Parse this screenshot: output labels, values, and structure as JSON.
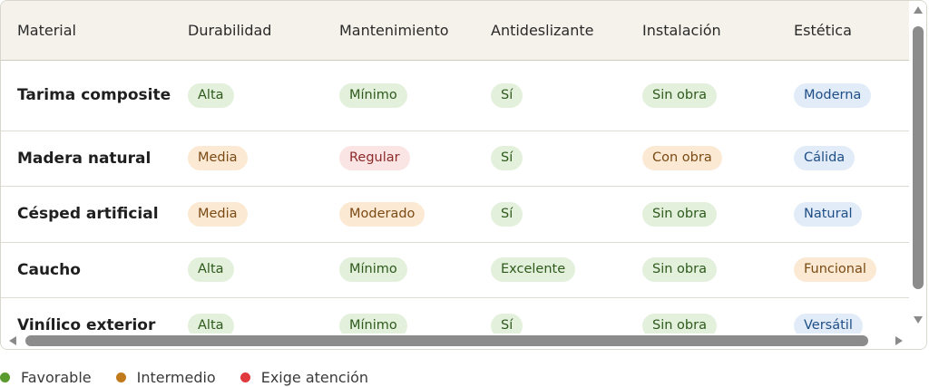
{
  "table": {
    "headers": [
      "Material",
      "Durabilidad",
      "Mantenimiento",
      "Antideslizante",
      "Instalación",
      "Estética"
    ],
    "rows": [
      {
        "material": "Tarima composite",
        "durabilidad": "Alta",
        "mantenimiento": "Mínimo",
        "antideslizante": "Sí",
        "instalacion": "Sin obra",
        "estetica": "Moderna"
      },
      {
        "material": "Madera natural",
        "durabilidad": "Media",
        "mantenimiento": "Regular",
        "antideslizante": "Sí",
        "instalacion": "Con obra",
        "estetica": "Cálida"
      },
      {
        "material": "Césped artificial",
        "durabilidad": "Media",
        "mantenimiento": "Moderado",
        "antideslizante": "Sí",
        "instalacion": "Sin obra",
        "estetica": "Natural"
      },
      {
        "material": "Caucho",
        "durabilidad": "Alta",
        "mantenimiento": "Mínimo",
        "antideslizante": "Excelente",
        "instalacion": "Sin obra",
        "estetica": "Funcional"
      },
      {
        "material": "Vinílico exterior",
        "durabilidad": "Alta",
        "mantenimiento": "Mínimo",
        "antideslizante": "Sí",
        "instalacion": "Sin obra",
        "estetica": "Versátil"
      }
    ]
  },
  "legend": [
    {
      "label": "Favorable",
      "color": "#5a9a2e"
    },
    {
      "label": "Intermedio",
      "color": "#c07a1a"
    },
    {
      "label": "Exige atención",
      "color": "#e0393e"
    }
  ],
  "colors": {
    "favorable": "#e3f0dc",
    "intermedio": "#fbe9d3",
    "atencion": "#fbe4e4",
    "estetica": "#e1ecf8"
  }
}
